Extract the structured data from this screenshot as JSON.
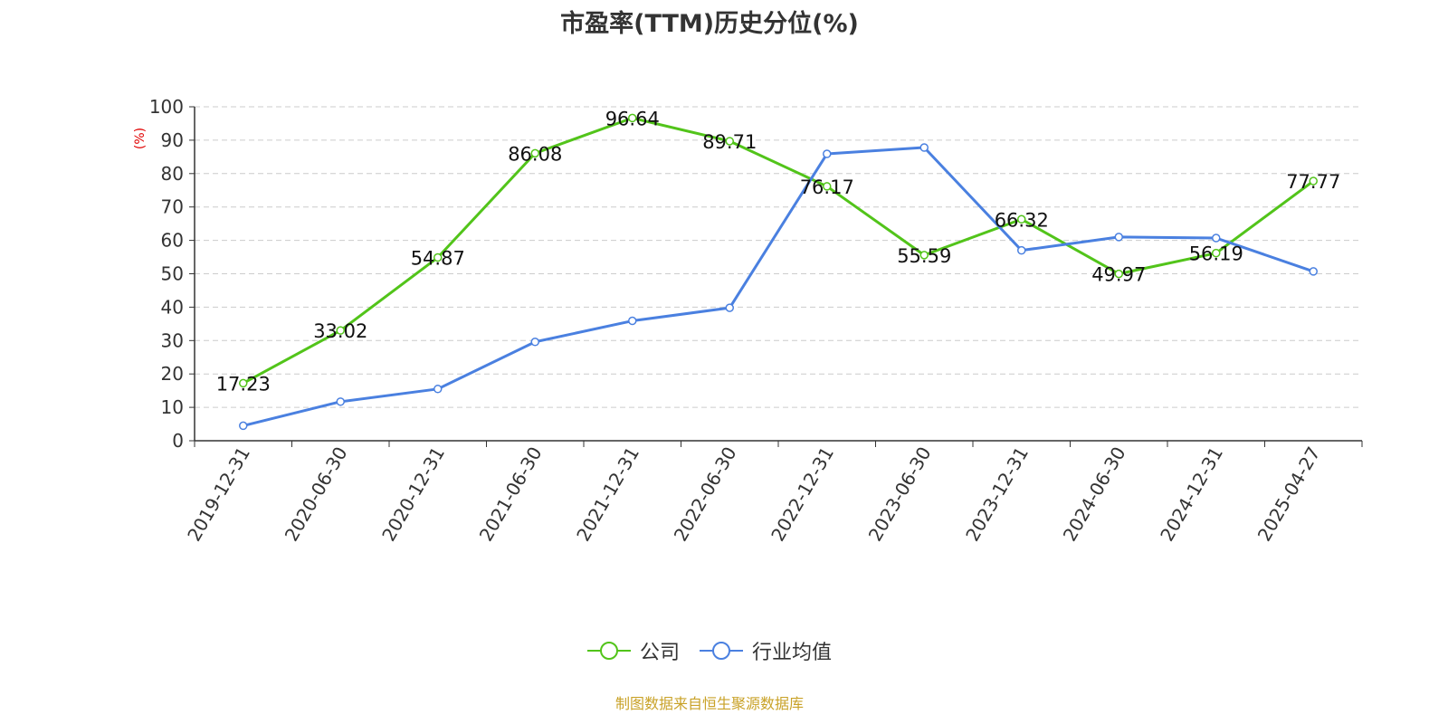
{
  "chart_data": {
    "type": "line",
    "title": "市盈率(TTM)历史分位(%)",
    "ylabel": "(%)",
    "xlabel": "",
    "ylim": [
      0,
      100
    ],
    "yticks": [
      0,
      10,
      20,
      30,
      40,
      50,
      60,
      70,
      80,
      90,
      100
    ],
    "grid": true,
    "legend_position": "bottom",
    "categories": [
      "2019-12-31",
      "2020-06-30",
      "2020-12-31",
      "2021-06-30",
      "2021-12-31",
      "2022-06-30",
      "2022-12-31",
      "2023-06-30",
      "2023-12-31",
      "2024-06-30",
      "2024-12-31",
      "2025-04-27"
    ],
    "series": [
      {
        "name": "公司",
        "color": "#52c41a",
        "values": [
          17.23,
          33.02,
          54.87,
          86.08,
          96.64,
          89.71,
          76.17,
          55.59,
          66.32,
          49.97,
          56.19,
          77.77
        ],
        "labels": [
          "17.23",
          "33.02",
          "54.87",
          "86.08",
          "96.64",
          "89.71",
          "76.17",
          "55.59",
          "66.32",
          "49.97",
          "56.19",
          "77.77"
        ]
      },
      {
        "name": "行业均值",
        "color": "#4a80e0",
        "values": [
          4.5,
          11.7,
          15.5,
          29.6,
          35.9,
          39.8,
          85.9,
          87.8,
          57.0,
          61.0,
          60.7,
          50.7
        ]
      }
    ],
    "source": "制图数据来自恒生聚源数据库"
  }
}
